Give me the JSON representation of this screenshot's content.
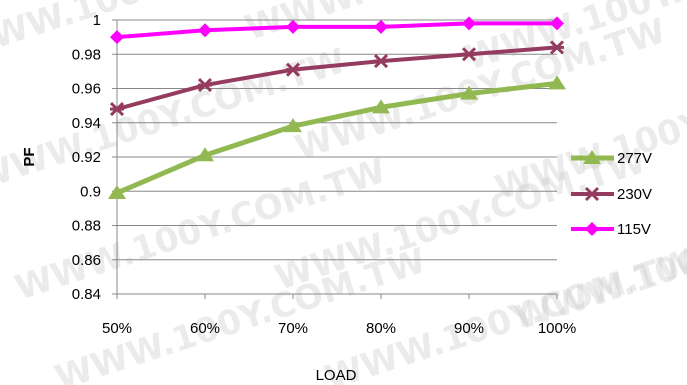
{
  "chart_data": {
    "type": "line",
    "categories": [
      "50%",
      "60%",
      "70%",
      "80%",
      "90%",
      "100%"
    ],
    "series": [
      {
        "name": "277V",
        "values": [
          0.899,
          0.921,
          0.938,
          0.949,
          0.957,
          0.963
        ],
        "color": "#92b951",
        "marker": "triangle"
      },
      {
        "name": "230V",
        "values": [
          0.948,
          0.962,
          0.971,
          0.976,
          0.98,
          0.984
        ],
        "color": "#953b5f",
        "marker": "star"
      },
      {
        "name": "115V",
        "values": [
          0.99,
          0.994,
          0.996,
          0.996,
          0.998,
          0.998
        ],
        "color": "#ff00ff",
        "marker": "diamond"
      }
    ],
    "xlabel": "LOAD",
    "ylabel": "PF",
    "ylim": [
      0.84,
      1.0
    ],
    "yticks": [
      "1",
      "0.98",
      "0.96",
      "0.94",
      "0.92",
      "0.9",
      "0.88",
      "0.86",
      "0.84"
    ],
    "grid": true,
    "legend": "right"
  },
  "watermark": "WWW.100Y.COM.TW"
}
